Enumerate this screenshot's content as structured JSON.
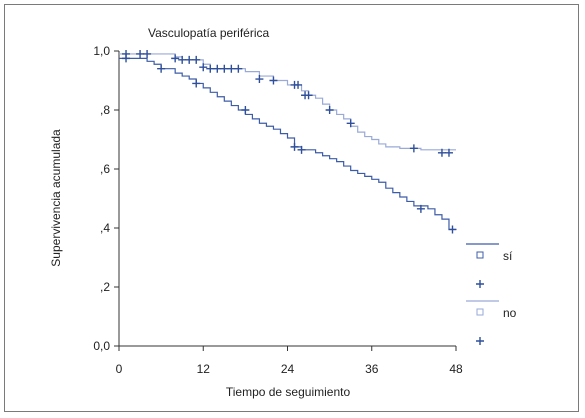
{
  "chart_data": {
    "type": "line",
    "title": "Vasculopatía periférica",
    "xlabel": "Tiempo de seguimiento",
    "ylabel": "Supervivencia acumulada",
    "xlim": [
      0,
      48
    ],
    "ylim": [
      0,
      1
    ],
    "x_ticks": [
      0,
      12,
      24,
      36,
      48
    ],
    "x_tick_labels": [
      "0",
      "12",
      "24",
      "36",
      "48"
    ],
    "y_ticks": [
      0,
      0.2,
      0.4,
      0.6,
      0.8,
      1.0
    ],
    "y_tick_labels": [
      "0,0",
      ",2",
      ",4",
      ",6",
      ",8",
      "1,0"
    ],
    "grid": false,
    "legend_position": "right",
    "series": [
      {
        "name": "sí",
        "color": "#3d5ca8",
        "steps": [
          [
            0,
            0.975
          ],
          [
            4,
            0.965
          ],
          [
            5,
            0.955
          ],
          [
            6,
            0.94
          ],
          [
            8,
            0.925
          ],
          [
            9,
            0.915
          ],
          [
            10,
            0.905
          ],
          [
            11,
            0.89
          ],
          [
            12,
            0.875
          ],
          [
            13,
            0.86
          ],
          [
            14,
            0.845
          ],
          [
            15,
            0.83
          ],
          [
            16,
            0.815
          ],
          [
            17,
            0.8
          ],
          [
            18,
            0.785
          ],
          [
            19,
            0.77
          ],
          [
            20,
            0.755
          ],
          [
            21,
            0.745
          ],
          [
            22,
            0.735
          ],
          [
            23,
            0.72
          ],
          [
            24,
            0.705
          ],
          [
            25,
            0.675
          ],
          [
            26,
            0.665
          ],
          [
            28,
            0.655
          ],
          [
            29,
            0.645
          ],
          [
            30,
            0.635
          ],
          [
            31,
            0.625
          ],
          [
            32,
            0.61
          ],
          [
            33,
            0.595
          ],
          [
            34,
            0.585
          ],
          [
            35,
            0.575
          ],
          [
            36,
            0.565
          ],
          [
            37,
            0.555
          ],
          [
            38,
            0.535
          ],
          [
            39,
            0.52
          ],
          [
            40,
            0.505
          ],
          [
            41,
            0.49
          ],
          [
            42,
            0.475
          ],
          [
            44,
            0.465
          ],
          [
            45,
            0.445
          ],
          [
            46,
            0.43
          ],
          [
            47,
            0.395
          ],
          [
            48,
            0.395
          ]
        ],
        "censored": [
          [
            1,
            0.975
          ],
          [
            6,
            0.94
          ],
          [
            11,
            0.89
          ],
          [
            18,
            0.8
          ],
          [
            25,
            0.675
          ],
          [
            26,
            0.665
          ],
          [
            43,
            0.465
          ],
          [
            47.5,
            0.395
          ]
        ]
      },
      {
        "name": "no",
        "color": "#9aaad8",
        "steps": [
          [
            0,
            0.99
          ],
          [
            8,
            0.98
          ],
          [
            9,
            0.97
          ],
          [
            12,
            0.955
          ],
          [
            13,
            0.94
          ],
          [
            18,
            0.93
          ],
          [
            20,
            0.915
          ],
          [
            22,
            0.9
          ],
          [
            24,
            0.885
          ],
          [
            26,
            0.865
          ],
          [
            27,
            0.85
          ],
          [
            28,
            0.84
          ],
          [
            29,
            0.82
          ],
          [
            30,
            0.8
          ],
          [
            31,
            0.785
          ],
          [
            32,
            0.77
          ],
          [
            33,
            0.745
          ],
          [
            34,
            0.725
          ],
          [
            35,
            0.71
          ],
          [
            36,
            0.7
          ],
          [
            37,
            0.685
          ],
          [
            38,
            0.675
          ],
          [
            40,
            0.67
          ],
          [
            43,
            0.665
          ],
          [
            48,
            0.665
          ]
        ],
        "censored": [
          [
            1,
            0.99
          ],
          [
            3,
            0.99
          ],
          [
            4,
            0.99
          ],
          [
            8,
            0.975
          ],
          [
            9,
            0.97
          ],
          [
            10,
            0.97
          ],
          [
            11,
            0.97
          ],
          [
            12,
            0.945
          ],
          [
            13,
            0.94
          ],
          [
            14,
            0.94
          ],
          [
            15,
            0.94
          ],
          [
            16,
            0.94
          ],
          [
            17,
            0.94
          ],
          [
            20,
            0.905
          ],
          [
            22,
            0.9
          ],
          [
            25,
            0.885
          ],
          [
            25.5,
            0.885
          ],
          [
            26.5,
            0.85
          ],
          [
            27,
            0.85
          ],
          [
            30,
            0.8
          ],
          [
            33,
            0.755
          ],
          [
            42,
            0.67
          ],
          [
            46,
            0.655
          ],
          [
            47,
            0.655
          ]
        ]
      }
    ]
  }
}
